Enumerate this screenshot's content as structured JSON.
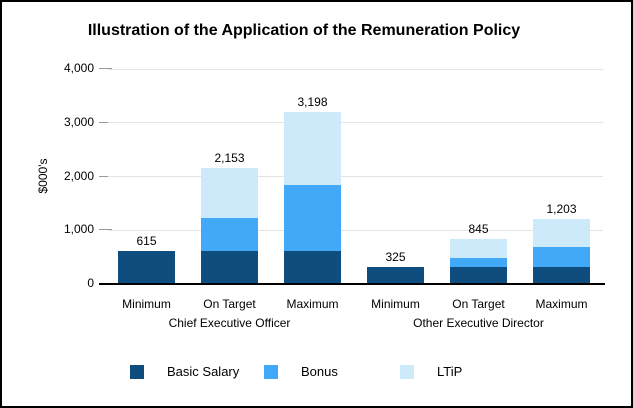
{
  "title": "Illustration of the Application of the Remuneration Policy",
  "chart_data": {
    "type": "bar",
    "stacked": true,
    "title": "Illustration of the Application of the Remuneration Policy",
    "ylabel": "$000's",
    "ylim": [
      0,
      4000
    ],
    "ytick_interval": 1000,
    "ytick_labels": [
      "0",
      "1,000",
      "2,000",
      "3,000",
      "4,000"
    ],
    "grid": true,
    "legend_position": "bottom",
    "categories": [
      "Minimum",
      "On Target",
      "Maximum",
      "Minimum",
      "On Target",
      "Maximum"
    ],
    "groups": [
      {
        "label": "Chief Executive Officer",
        "category_indexes": [
          0,
          1,
          2
        ]
      },
      {
        "label": "Other Executive Director",
        "category_indexes": [
          3,
          4,
          5
        ]
      }
    ],
    "series": [
      {
        "name": "Basic Salary",
        "color": "#0e4d7e",
        "values": [
          615,
          615,
          615,
          325,
          325,
          325
        ]
      },
      {
        "name": "Bonus",
        "color": "#41a9f8",
        "values": [
          0,
          615,
          1230,
          0,
          162,
          358
        ]
      },
      {
        "name": "LTiP",
        "color": "#cdeafb",
        "values": [
          0,
          923,
          1353,
          0,
          358,
          520
        ]
      }
    ],
    "total_labels": [
      "615",
      "2,153",
      "3,198",
      "325",
      "845",
      "1,203"
    ]
  }
}
